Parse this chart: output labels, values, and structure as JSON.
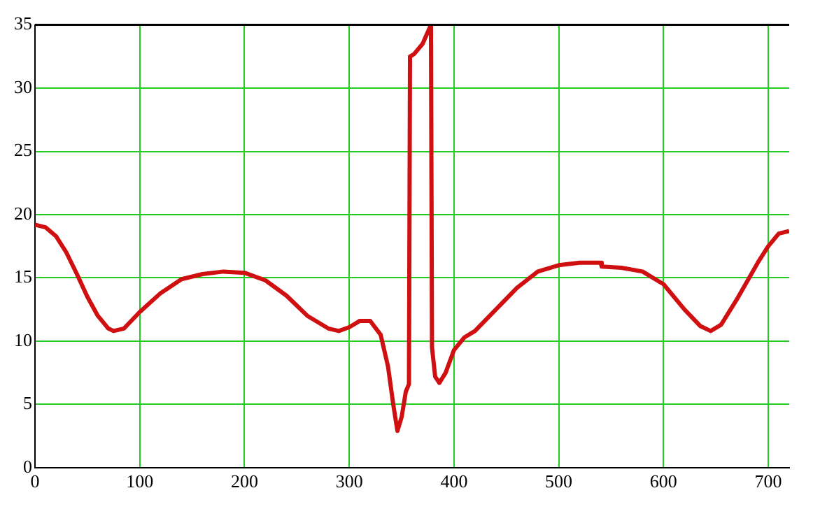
{
  "chart_data": {
    "type": "line",
    "xlim": [
      0,
      720
    ],
    "ylim": [
      0,
      35
    ],
    "xticks": [
      0,
      100,
      200,
      300,
      400,
      500,
      600,
      700
    ],
    "yticks": [
      0,
      5,
      10,
      15,
      20,
      25,
      30,
      35
    ],
    "grid": true,
    "legend": false,
    "marker": "none",
    "line_style": "solid",
    "series": [
      {
        "color": "#d01010",
        "x": [
          0,
          10,
          20,
          30,
          40,
          50,
          60,
          70,
          75,
          85,
          100,
          120,
          140,
          160,
          180,
          200,
          220,
          240,
          260,
          280,
          290,
          300,
          310,
          320,
          330,
          337,
          342,
          346,
          350,
          354,
          357,
          358,
          362,
          370,
          378,
          379,
          382,
          386,
          392,
          400,
          410,
          420,
          440,
          460,
          480,
          500,
          520,
          540,
          541,
          560,
          580,
          600,
          620,
          635,
          645,
          655,
          670,
          690,
          700,
          710,
          720
        ],
        "values": [
          19.2,
          19,
          18.3,
          17,
          15.3,
          13.5,
          12,
          11,
          10.8,
          11,
          12.3,
          13.8,
          14.9,
          15.3,
          15.5,
          15.4,
          14.8,
          13.6,
          12,
          11,
          10.8,
          11.1,
          11.6,
          11.6,
          10.5,
          8,
          5,
          2.9,
          4,
          6,
          6.6,
          32.5,
          32.7,
          33.5,
          35,
          9.5,
          7.2,
          6.7,
          7.5,
          9.3,
          10.3,
          10.8,
          12.5,
          14.2,
          15.5,
          16,
          16.2,
          16.2,
          15.9,
          15.8,
          15.5,
          14.5,
          12.5,
          11.2,
          10.8,
          11.3,
          13.3,
          16.2,
          17.5,
          18.5,
          18.7
        ]
      }
    ]
  }
}
